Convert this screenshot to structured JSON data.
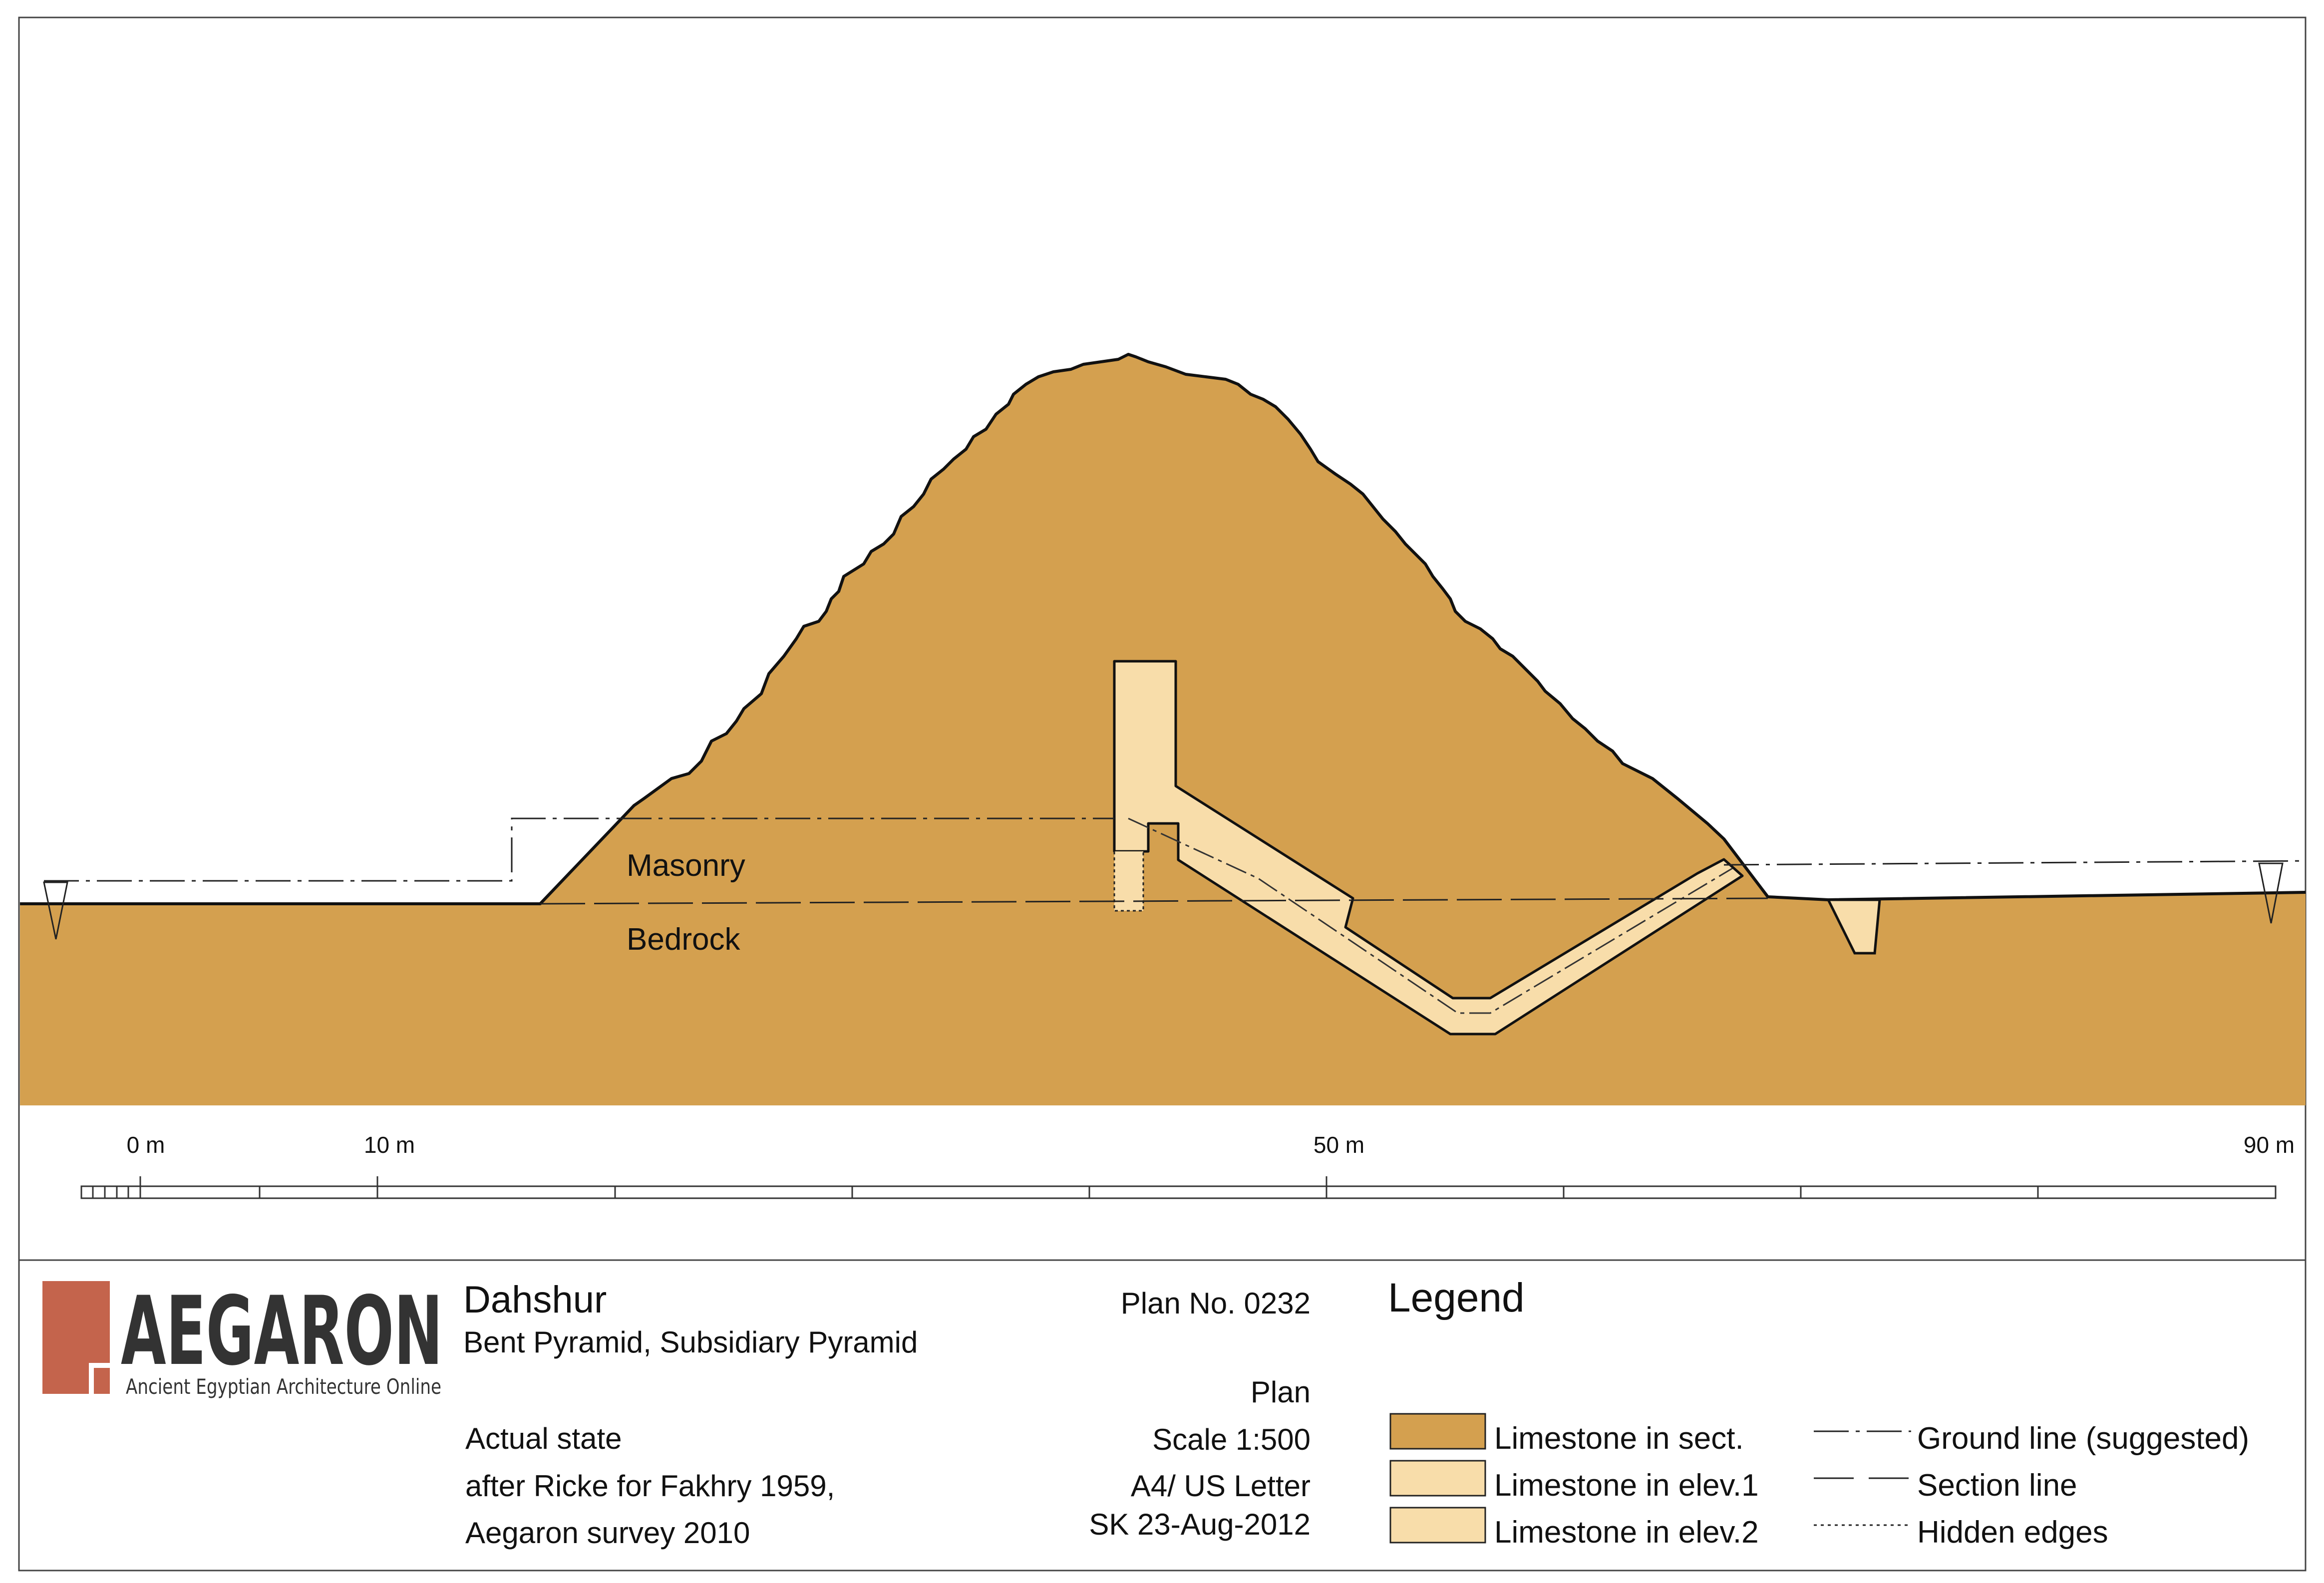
{
  "drawing": {
    "labels": {
      "masonry": "Masonry",
      "bedrock": "Bedrock"
    },
    "scale_bar": {
      "ticks": [
        "0 m",
        "10 m",
        "50 m",
        "90 m"
      ]
    }
  },
  "title_block": {
    "logo": {
      "wordmark": "AEGARON",
      "tagline": "Ancient Egyptian Architecture Online"
    },
    "site": "Dahshur",
    "monument": "Bent Pyramid, Subsidiary Pyramid",
    "notes": [
      "Actual state",
      "after Ricke for Fakhry 1959,",
      "Aegaron survey 2010"
    ],
    "plan_no": "Plan No. 0232",
    "plan_type": "Plan",
    "scale": "Scale 1:500",
    "paper": "A4/ US Letter",
    "author_date": "SK 23-Aug-2012"
  },
  "legend": {
    "title": "Legend",
    "swatches": [
      {
        "label": "Limestone in sect.",
        "color": "#D4A04F"
      },
      {
        "label": "Limestone in elev.1",
        "color": "#F8DDAA"
      },
      {
        "label": "Limestone in elev.2",
        "color": "#F8DDAA"
      }
    ],
    "lines": [
      {
        "label": "Ground line (suggested)",
        "style": "dash-dot"
      },
      {
        "label": "Section line",
        "style": "dash"
      },
      {
        "label": "Hidden edges",
        "style": "dotted"
      }
    ]
  },
  "colors": {
    "limestone_section": "#D4A04F",
    "limestone_elevation": "#F8DDAA",
    "logo": "#C4644C",
    "wordmark": "#333333"
  }
}
